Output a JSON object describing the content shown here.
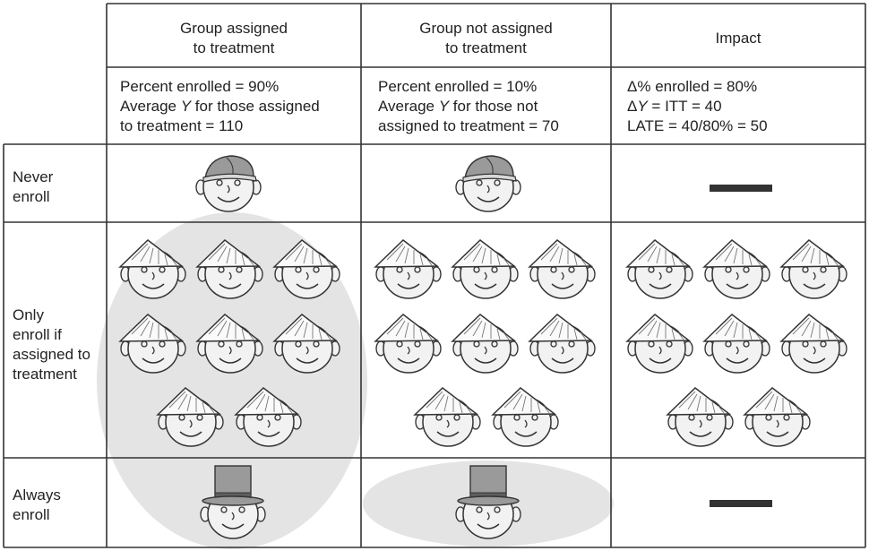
{
  "columns": {
    "treat": {
      "header": [
        "Group assigned",
        "to treatment"
      ],
      "stats": {
        "line1": "Percent enrolled = 90%",
        "line2_pre": "Average ",
        "line2_var": "Y",
        "line2_post": " for those assigned",
        "line3": "to treatment = 110"
      }
    },
    "control": {
      "header": [
        "Group not assigned",
        "to treatment"
      ],
      "stats": {
        "line1": "Percent enrolled = 10%",
        "line2_pre": "Average ",
        "line2_var": "Y",
        "line2_post": " for those not",
        "line3": "assigned to treatment = 70"
      }
    },
    "impact": {
      "header": "Impact",
      "stats": {
        "line1": "Δ% enrolled = 80%",
        "line2_pre": "Δ",
        "line2_var": "Y",
        "line2_post": " = ITT = 40",
        "line3": "LATE = 40/80% = 50"
      }
    }
  },
  "rows": {
    "never": {
      "label": [
        "Never",
        "enroll"
      ],
      "treat_faces": 1,
      "control_faces": 1,
      "impact": "dash"
    },
    "complier": {
      "label": [
        "Only",
        "enroll if",
        "assigned to",
        "treatment"
      ],
      "treat_faces": 8,
      "control_faces": 8,
      "impact_faces": 8
    },
    "always": {
      "label": [
        "Always",
        "enroll"
      ],
      "treat_faces": 1,
      "control_faces": 1,
      "impact": "dash"
    }
  },
  "icons": {
    "never": "baseball-cap-face-icon",
    "complier": "paper-hat-face-icon",
    "always": "top-hat-face-icon"
  },
  "colors": {
    "grid": "#333333",
    "enrolled_oval": "#e4e4e4",
    "face": "#f2f2f2",
    "ink": "#333333"
  }
}
